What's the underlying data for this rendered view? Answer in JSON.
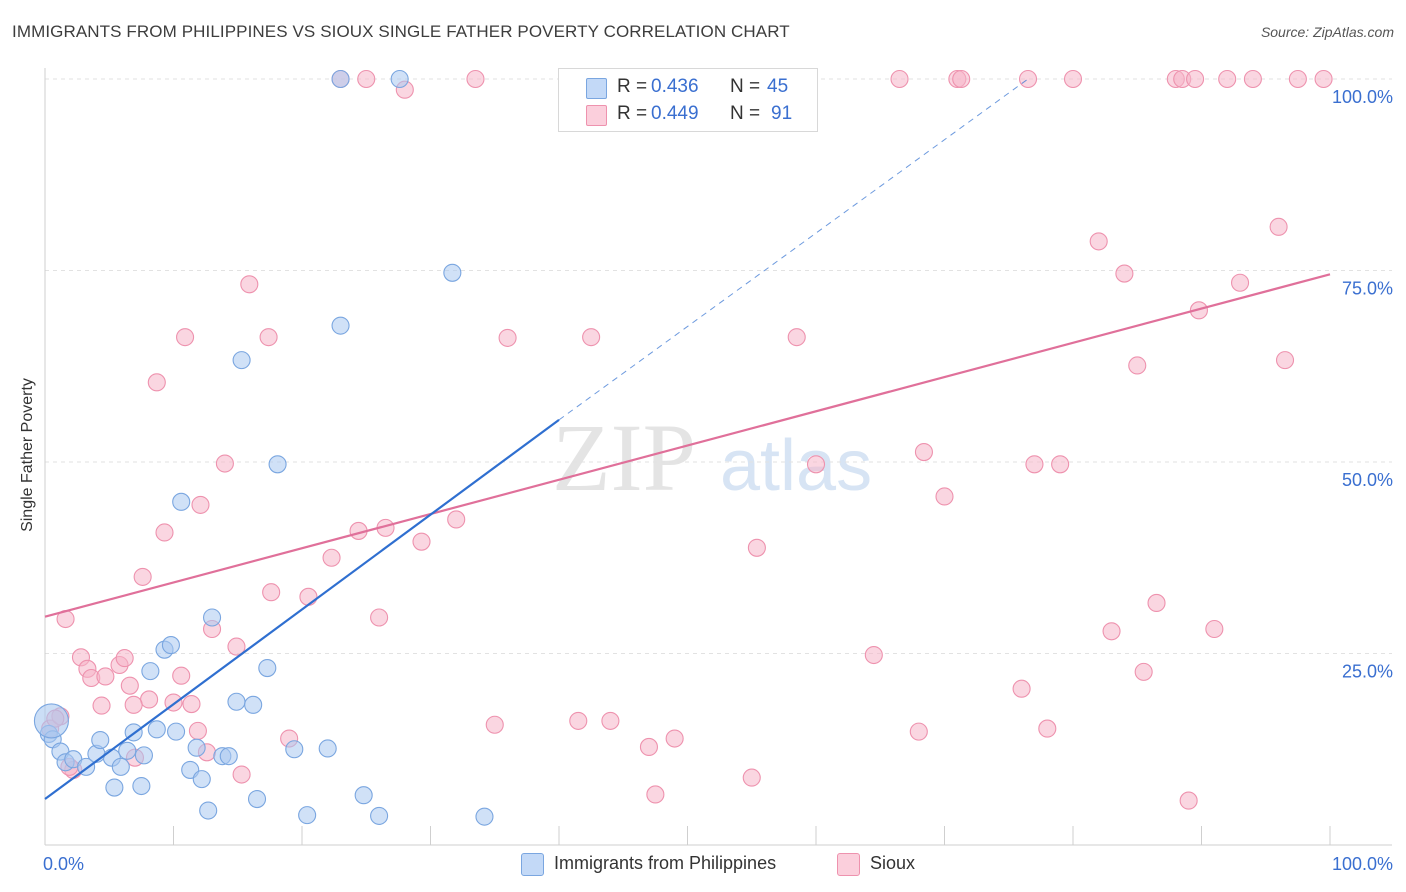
{
  "title": "IMMIGRANTS FROM PHILIPPINES VS SIOUX SINGLE FATHER POVERTY CORRELATION CHART",
  "source": "Source: ZipAtlas.com",
  "watermark": {
    "zip": "ZIP",
    "atlas": "atlas"
  },
  "legend": {
    "series1": {
      "r_label": "R = ",
      "r_value": "0.436",
      "n_label": "N = ",
      "n_value": "45"
    },
    "series2": {
      "r_label": "R = ",
      "r_value": "0.449",
      "n_label": "N = ",
      "n_value": "91"
    }
  },
  "colors": {
    "blue_fill": "#a9c8f0",
    "blue_stroke": "#7aa6e0",
    "blue_line": "#2f6fd0",
    "pink_fill": "#f6b5c9",
    "pink_stroke": "#ee92ae",
    "pink_line": "#e0709a",
    "tick_text": "#3a6fd0",
    "grid": "#e2e2e2"
  },
  "chart_data": {
    "type": "scatter",
    "ylabel": "Single Father Poverty",
    "xlim": [
      0,
      100
    ],
    "ylim": [
      0,
      100
    ],
    "x_tick_labels": [
      "0.0%",
      "100.0%"
    ],
    "y_ticks": [
      25,
      50,
      75,
      100
    ],
    "y_tick_labels": [
      "25.0%",
      "50.0%",
      "75.0%",
      "100.0%"
    ],
    "grid": true,
    "legend_position": "bottom-center",
    "series": [
      {
        "name": "Immigrants from Philippines",
        "color": "#a9c8f0",
        "trend": {
          "x": [
            0,
            40
          ],
          "y": [
            6.0,
            55.5
          ],
          "dashed_to": [
            76.5,
            100
          ]
        },
        "points": [
          [
            0.3,
            14.5
          ],
          [
            0.6,
            13.8
          ],
          [
            1.2,
            12.2
          ],
          [
            1.6,
            10.8
          ],
          [
            2.2,
            11.2
          ],
          [
            3.2,
            10.2
          ],
          [
            4.0,
            11.9
          ],
          [
            4.3,
            13.7
          ],
          [
            5.2,
            11.4
          ],
          [
            5.4,
            7.5
          ],
          [
            5.9,
            10.2
          ],
          [
            6.4,
            12.3
          ],
          [
            6.9,
            14.7
          ],
          [
            7.5,
            7.7
          ],
          [
            7.7,
            11.7
          ],
          [
            8.2,
            22.7
          ],
          [
            8.7,
            15.1
          ],
          [
            9.3,
            25.5
          ],
          [
            9.8,
            26.1
          ],
          [
            10.2,
            14.8
          ],
          [
            10.6,
            44.8
          ],
          [
            11.3,
            9.8
          ],
          [
            11.8,
            12.7
          ],
          [
            12.2,
            8.6
          ],
          [
            12.7,
            4.5
          ],
          [
            13.0,
            29.7
          ],
          [
            13.8,
            11.6
          ],
          [
            14.3,
            11.6
          ],
          [
            14.9,
            18.7
          ],
          [
            15.3,
            63.3
          ],
          [
            16.2,
            18.3
          ],
          [
            16.5,
            6.0
          ],
          [
            17.3,
            23.1
          ],
          [
            18.1,
            49.7
          ],
          [
            19.4,
            12.5
          ],
          [
            20.4,
            3.9
          ],
          [
            22.0,
            12.6
          ],
          [
            23.0,
            67.8
          ],
          [
            23.0,
            100.0
          ],
          [
            24.8,
            6.5
          ],
          [
            26.0,
            3.8
          ],
          [
            27.6,
            100.0
          ],
          [
            31.7,
            74.7
          ],
          [
            34.2,
            3.7
          ],
          [
            0.5,
            16.2
          ]
        ],
        "sizes": [
          1,
          1,
          1,
          1,
          1,
          1,
          1,
          1,
          1,
          1,
          1,
          1,
          1,
          1,
          1,
          1,
          1,
          1,
          1,
          1,
          1,
          1,
          1,
          1,
          1,
          1,
          1,
          1,
          1,
          1,
          1,
          1,
          1,
          1,
          1,
          1,
          1,
          1,
          1,
          1,
          1,
          1,
          1,
          1,
          3
        ]
      },
      {
        "name": "Sioux",
        "color": "#f6b5c9",
        "trend": {
          "x": [
            0,
            100
          ],
          "y": [
            29.8,
            74.5
          ]
        },
        "points": [
          [
            0.4,
            15.2
          ],
          [
            1.2,
            16.8
          ],
          [
            1.6,
            29.5
          ],
          [
            2.2,
            9.8
          ],
          [
            2.8,
            24.5
          ],
          [
            3.3,
            23.0
          ],
          [
            3.6,
            21.8
          ],
          [
            4.4,
            18.2
          ],
          [
            4.7,
            22.0
          ],
          [
            5.8,
            23.5
          ],
          [
            6.2,
            24.4
          ],
          [
            6.6,
            20.8
          ],
          [
            7.0,
            11.4
          ],
          [
            7.6,
            35.0
          ],
          [
            8.1,
            19.0
          ],
          [
            8.7,
            60.4
          ],
          [
            9.3,
            40.8
          ],
          [
            10.0,
            18.6
          ],
          [
            10.6,
            22.1
          ],
          [
            10.9,
            66.3
          ],
          [
            11.4,
            18.4
          ],
          [
            11.9,
            14.9
          ],
          [
            12.1,
            44.4
          ],
          [
            13.0,
            28.2
          ],
          [
            14.0,
            49.8
          ],
          [
            14.9,
            25.9
          ],
          [
            15.3,
            9.2
          ],
          [
            15.9,
            73.2
          ],
          [
            17.4,
            66.3
          ],
          [
            17.6,
            33.0
          ],
          [
            19.0,
            13.9
          ],
          [
            20.5,
            32.4
          ],
          [
            22.3,
            37.5
          ],
          [
            23.0,
            100.0
          ],
          [
            24.4,
            41.0
          ],
          [
            25.0,
            100.0
          ],
          [
            26.5,
            41.4
          ],
          [
            28.0,
            98.6
          ],
          [
            29.3,
            39.6
          ],
          [
            32.0,
            42.5
          ],
          [
            33.5,
            100.0
          ],
          [
            35.0,
            15.7
          ],
          [
            41.5,
            16.2
          ],
          [
            42.5,
            66.3
          ],
          [
            44.0,
            16.2
          ],
          [
            47.0,
            12.8
          ],
          [
            47.5,
            6.6
          ],
          [
            49.0,
            13.9
          ],
          [
            55.0,
            8.8
          ],
          [
            55.4,
            38.8
          ],
          [
            57.2,
            100.0
          ],
          [
            58.5,
            66.3
          ],
          [
            60.0,
            49.7
          ],
          [
            64.5,
            24.8
          ],
          [
            66.5,
            100.0
          ],
          [
            68.0,
            14.8
          ],
          [
            68.4,
            51.3
          ],
          [
            70.0,
            45.5
          ],
          [
            71.0,
            100.0
          ],
          [
            71.3,
            100.0
          ],
          [
            76.0,
            20.4
          ],
          [
            76.5,
            100.0
          ],
          [
            77.0,
            49.7
          ],
          [
            78.0,
            15.2
          ],
          [
            79.0,
            49.7
          ],
          [
            80.0,
            100.0
          ],
          [
            82.0,
            78.8
          ],
          [
            83.0,
            27.9
          ],
          [
            84.0,
            74.6
          ],
          [
            85.0,
            62.6
          ],
          [
            85.5,
            22.6
          ],
          [
            86.5,
            31.6
          ],
          [
            88.0,
            100.0
          ],
          [
            88.5,
            100.0
          ],
          [
            89.0,
            5.8
          ],
          [
            89.5,
            100.0
          ],
          [
            89.8,
            69.8
          ],
          [
            91.0,
            28.2
          ],
          [
            92.0,
            100.0
          ],
          [
            93.0,
            73.4
          ],
          [
            94.0,
            100.0
          ],
          [
            96.0,
            80.7
          ],
          [
            96.5,
            63.3
          ],
          [
            97.5,
            100.0
          ],
          [
            99.5,
            100.0
          ],
          [
            0.8,
            16.5
          ],
          [
            1.9,
            10.2
          ],
          [
            6.9,
            18.3
          ],
          [
            12.6,
            12.1
          ],
          [
            26.0,
            29.7
          ],
          [
            36.0,
            66.2
          ]
        ]
      }
    ]
  },
  "bottom_legend": {
    "item1": "Immigrants from Philippines",
    "item2": "Sioux"
  }
}
